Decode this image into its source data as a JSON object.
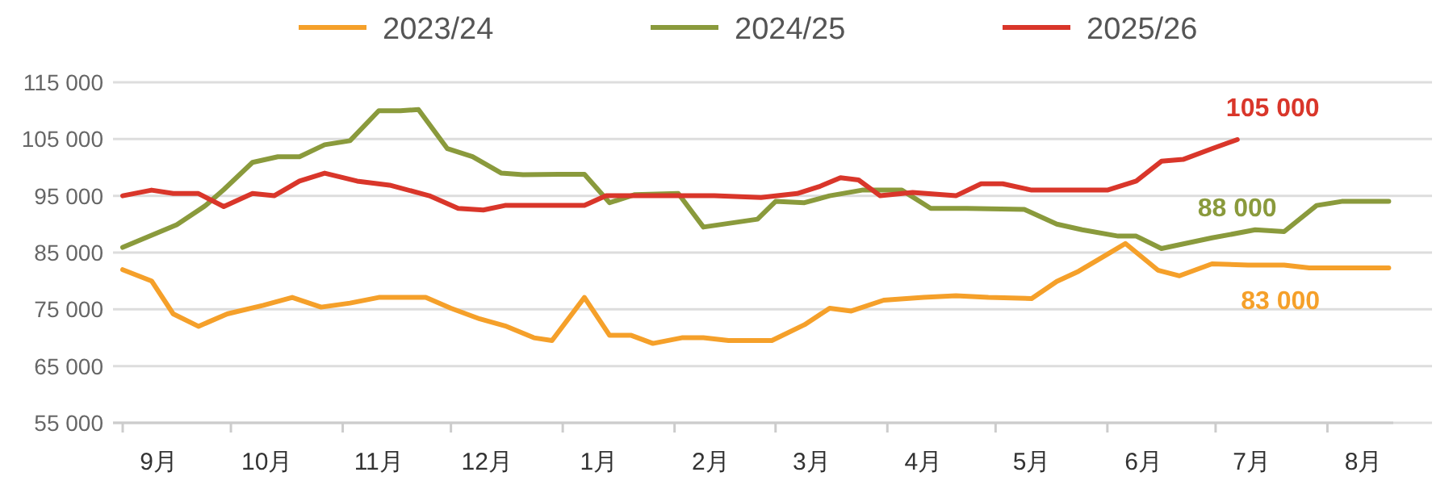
{
  "chart_data": {
    "type": "line",
    "legend": "top",
    "grid": "y",
    "line_style": "solid",
    "marker": "none",
    "xlim": [
      "2025-09-01",
      "2026-08-30"
    ],
    "ylim": [
      55000,
      115000
    ],
    "xticks": [
      {
        "value": "2025-09-01",
        "label": null
      },
      {
        "value": "2025-10-01",
        "label": null
      },
      {
        "value": "2025-11-01",
        "label": null
      },
      {
        "value": "2025-12-01",
        "label": null
      },
      {
        "value": "2026-01-01",
        "label": null
      },
      {
        "value": "2026-02-01",
        "label": null
      },
      {
        "value": "2026-03-01",
        "label": null
      },
      {
        "value": "2026-04-01",
        "label": null
      },
      {
        "value": "2026-05-01",
        "label": null
      },
      {
        "value": "2026-06-01",
        "label": null
      },
      {
        "value": "2026-07-01",
        "label": null
      },
      {
        "value": "2026-08-01",
        "label": null
      },
      {
        "value": "2025-09-11",
        "label": "9月"
      },
      {
        "value": "2025-10-11",
        "label": "10月"
      },
      {
        "value": "2025-11-11",
        "label": "11月"
      },
      {
        "value": "2025-12-11",
        "label": "12月"
      },
      {
        "value": "2026-01-11",
        "label": "1月"
      },
      {
        "value": "2026-02-11",
        "label": "2月"
      },
      {
        "value": "2026-03-11",
        "label": "3月"
      },
      {
        "value": "2026-04-11",
        "label": "4月"
      },
      {
        "value": "2026-05-11",
        "label": "5月"
      },
      {
        "value": "2026-06-11",
        "label": "6月"
      },
      {
        "value": "2026-07-11",
        "label": "7月"
      },
      {
        "value": "2026-08-11",
        "label": "8月"
      }
    ],
    "yticks": [
      {
        "value": 55000,
        "label": "55 000"
      },
      {
        "value": 65000,
        "label": "65 000"
      },
      {
        "value": 75000,
        "label": "75 000"
      },
      {
        "value": 85000,
        "label": "85 000"
      },
      {
        "value": 95000,
        "label": "95 000"
      },
      {
        "value": 105000,
        "label": "105 000"
      },
      {
        "value": 115000,
        "label": "115 000"
      }
    ],
    "series": [
      {
        "name": "2023/24",
        "color": "#f5a02a",
        "x": [
          "2025-09-01",
          "2025-09-09",
          "2025-09-15",
          "2025-09-22",
          "2025-09-30",
          "2025-10-10",
          "2025-10-18",
          "2025-10-26",
          "2025-11-03",
          "2025-11-11",
          "2025-11-24",
          "2025-12-01",
          "2025-12-09",
          "2025-12-16",
          "2025-12-24",
          "2025-12-29",
          "2026-01-07",
          "2026-01-14",
          "2026-01-20",
          "2026-01-26",
          "2026-02-03",
          "2026-02-09",
          "2026-02-16",
          "2026-02-28",
          "2026-03-09",
          "2026-03-16",
          "2026-03-22",
          "2026-03-31",
          "2026-04-11",
          "2026-04-20",
          "2026-04-29",
          "2026-05-11",
          "2026-05-18",
          "2026-05-24",
          "2026-06-01",
          "2026-06-06",
          "2026-06-15",
          "2026-06-21",
          "2026-06-30",
          "2026-07-10",
          "2026-07-20",
          "2026-07-27",
          "2026-08-18"
        ],
        "values": [
          82000,
          80000,
          74200,
          72000,
          74200,
          75700,
          77100,
          75400,
          76100,
          77100,
          77100,
          75200,
          73300,
          72100,
          70000,
          69500,
          77100,
          70400,
          70400,
          69000,
          70000,
          70000,
          69500,
          69500,
          72300,
          75200,
          74700,
          76600,
          77100,
          77400,
          77100,
          76900,
          79900,
          81700,
          84700,
          86600,
          81900,
          80900,
          83000,
          82800,
          82800,
          82300,
          82300
        ]
      },
      {
        "name": "2024/25",
        "color": "#8a9a3c",
        "x": [
          "2025-09-01",
          "2025-09-16",
          "2025-09-24",
          "2025-09-29",
          "2025-10-07",
          "2025-10-14",
          "2025-10-20",
          "2025-10-27",
          "2025-11-03",
          "2025-11-11",
          "2025-11-17",
          "2025-11-22",
          "2025-11-30",
          "2025-12-07",
          "2025-12-15",
          "2025-12-21",
          "2025-12-31",
          "2026-01-07",
          "2026-01-14",
          "2026-01-21",
          "2026-02-02",
          "2026-02-09",
          "2026-02-24",
          "2026-03-01",
          "2026-03-09",
          "2026-03-16",
          "2026-03-25",
          "2026-04-05",
          "2026-04-13",
          "2026-04-23",
          "2026-05-09",
          "2026-05-18",
          "2026-05-25",
          "2026-06-04",
          "2026-06-09",
          "2026-06-16",
          "2026-06-30",
          "2026-07-12",
          "2026-07-20",
          "2026-07-29",
          "2026-08-05",
          "2026-08-18"
        ],
        "values": [
          85900,
          89900,
          93300,
          96100,
          100900,
          101900,
          101900,
          104000,
          104700,
          110000,
          110000,
          110200,
          103300,
          101900,
          99000,
          98700,
          98800,
          98800,
          93800,
          95200,
          95400,
          89500,
          90900,
          94000,
          93800,
          95000,
          96000,
          96000,
          92800,
          92800,
          92600,
          90000,
          89000,
          87900,
          87900,
          85700,
          87600,
          89000,
          88700,
          93300,
          94000,
          94000
        ]
      },
      {
        "name": "2025/26",
        "color": "#d9362a",
        "x": [
          "2025-09-01",
          "2025-09-09",
          "2025-09-15",
          "2025-09-22",
          "2025-09-29",
          "2025-10-07",
          "2025-10-13",
          "2025-10-20",
          "2025-10-27",
          "2025-11-05",
          "2025-11-14",
          "2025-11-25",
          "2025-12-03",
          "2025-12-10",
          "2025-12-16",
          "2025-12-31",
          "2026-01-07",
          "2026-01-13",
          "2026-02-12",
          "2026-02-25",
          "2026-03-07",
          "2026-03-13",
          "2026-03-19",
          "2026-03-24",
          "2026-03-30",
          "2026-04-08",
          "2026-04-20",
          "2026-04-27",
          "2026-05-03",
          "2026-05-11",
          "2026-06-01",
          "2026-06-09",
          "2026-06-16",
          "2026-06-22",
          "2026-06-30",
          "2026-07-07"
        ],
        "values": [
          95000,
          96000,
          95400,
          95400,
          93100,
          95400,
          95000,
          97600,
          99000,
          97600,
          96900,
          95000,
          92800,
          92500,
          93300,
          93300,
          93300,
          95000,
          95000,
          94700,
          95400,
          96600,
          98200,
          97800,
          95000,
          95600,
          95000,
          97100,
          97100,
          96000,
          96000,
          97600,
          101100,
          101400,
          103300,
          104900
        ]
      }
    ],
    "annotations": [
      {
        "text": "105 000",
        "x": "2026-07-07",
        "y": 105000
      },
      {
        "text": "88 000",
        "x": "2026-07-07",
        "y": 88000
      },
      {
        "text": "83 000",
        "x": "2026-07-10",
        "y": 83000
      }
    ]
  }
}
